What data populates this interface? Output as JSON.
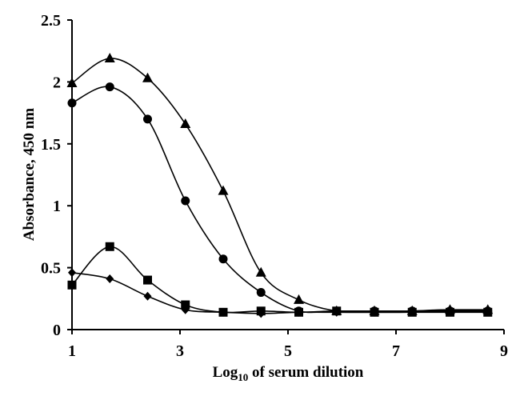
{
  "chart_data": {
    "type": "line",
    "title": "",
    "xlabel_prefix": "Log",
    "xlabel_subscript": "10",
    "xlabel_suffix": " of serum dilution",
    "ylabel": "Absorbance, 450 nm",
    "xlim": [
      1,
      9
    ],
    "ylim": [
      0,
      2.5
    ],
    "xticks": [
      1,
      3,
      5,
      7,
      9
    ],
    "xtick_labels": [
      "1",
      "3",
      "5",
      "7",
      "9"
    ],
    "yticks": [
      0,
      0.5,
      1,
      1.5,
      2,
      2.5
    ],
    "ytick_labels": [
      "0",
      "0.5",
      "1",
      "1.5",
      "2",
      "2.5"
    ],
    "grid": false,
    "legend": "none",
    "series": [
      {
        "marker": "triangle",
        "color": "#000000",
        "x": [
          1.0,
          1.7,
          2.4,
          3.1,
          3.8,
          4.5,
          5.2,
          5.9,
          6.6,
          7.3,
          8.0,
          8.7
        ],
        "y": [
          1.99,
          2.19,
          2.03,
          1.66,
          1.12,
          0.46,
          0.24,
          0.15,
          0.15,
          0.15,
          0.16,
          0.16
        ]
      },
      {
        "marker": "circle",
        "color": "#000000",
        "x": [
          1.0,
          1.7,
          2.4,
          3.1,
          3.8,
          4.5,
          5.2,
          5.9,
          6.6,
          7.3,
          8.0,
          8.7
        ],
        "y": [
          1.83,
          1.96,
          1.7,
          1.04,
          0.57,
          0.3,
          0.15,
          0.15,
          0.15,
          0.15,
          0.15,
          0.15
        ]
      },
      {
        "marker": "square",
        "color": "#000000",
        "x": [
          1.0,
          1.7,
          2.4,
          3.1,
          3.8,
          4.5,
          5.2,
          5.9,
          6.6,
          7.3,
          8.0,
          8.7
        ],
        "y": [
          0.36,
          0.67,
          0.4,
          0.2,
          0.14,
          0.15,
          0.14,
          0.15,
          0.14,
          0.14,
          0.14,
          0.14
        ]
      },
      {
        "marker": "diamond",
        "color": "#000000",
        "x": [
          1.0,
          1.7,
          2.4,
          3.1,
          3.8,
          4.5,
          5.2,
          5.9,
          6.6,
          7.3,
          8.0,
          8.7
        ],
        "y": [
          0.46,
          0.41,
          0.27,
          0.16,
          0.14,
          0.13,
          0.14,
          0.14,
          0.14,
          0.15,
          0.16,
          0.15
        ]
      }
    ]
  }
}
